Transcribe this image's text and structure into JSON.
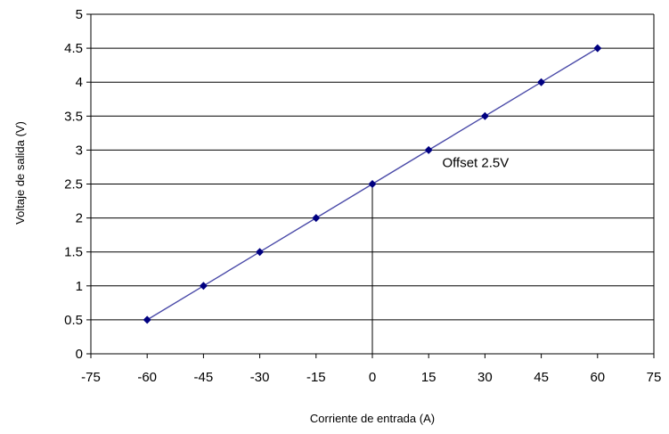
{
  "chart_data": {
    "type": "line",
    "title": "",
    "xlabel": "Corriente de entrada (A)",
    "ylabel": "Voltaje de salida (V)",
    "xlim": [
      -75,
      75
    ],
    "ylim": [
      0,
      5
    ],
    "x_ticks": [
      -75,
      -60,
      -45,
      -30,
      -15,
      0,
      15,
      30,
      45,
      60,
      75
    ],
    "y_ticks": [
      0,
      0.5,
      1,
      1.5,
      2,
      2.5,
      3,
      3.5,
      4,
      4.5,
      5
    ],
    "grid": {
      "horizontal": true,
      "vertical": false
    },
    "series": [
      {
        "x": [
          -60,
          -45,
          -30,
          -15,
          0,
          15,
          30,
          45,
          60
        ],
        "y": [
          0.5,
          1,
          1.5,
          2,
          2.5,
          3,
          3.5,
          4,
          4.5
        ]
      }
    ],
    "marker_line": {
      "x": 0,
      "y": 2.5
    },
    "annotation": {
      "text": "Offset 2.5V",
      "x": 27.5,
      "y": 2.75
    }
  },
  "colors": {
    "series": "#4a4aa8",
    "marker": "#000080",
    "grid": "#000000",
    "axis": "#000000"
  }
}
